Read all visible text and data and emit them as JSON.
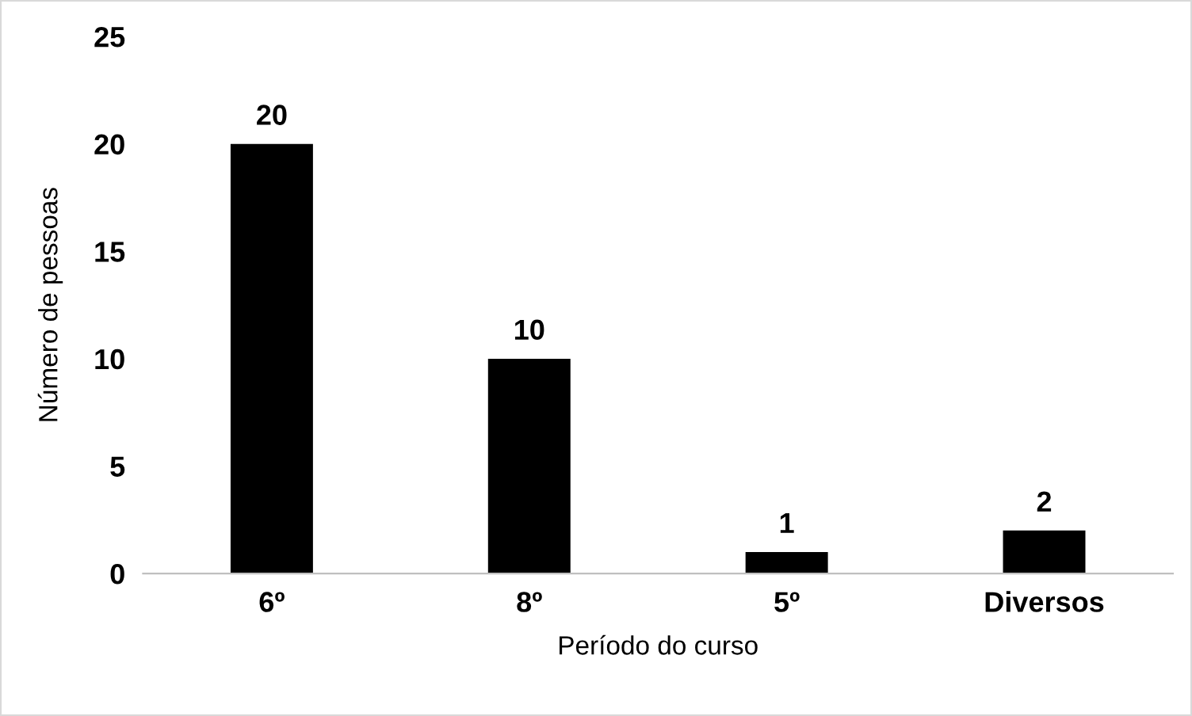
{
  "chart_data": {
    "type": "bar",
    "categories": [
      "6º",
      "8º",
      "5º",
      "Diversos"
    ],
    "values": [
      20,
      10,
      1,
      2
    ],
    "color": "#000000",
    "xlabel": "Período do curso",
    "ylabel": "Número de pessoas",
    "ylim": [
      0,
      25
    ],
    "yticks": [
      0,
      5,
      10,
      15,
      20,
      25
    ],
    "data_labels": true,
    "grid": false,
    "legend": false
  }
}
